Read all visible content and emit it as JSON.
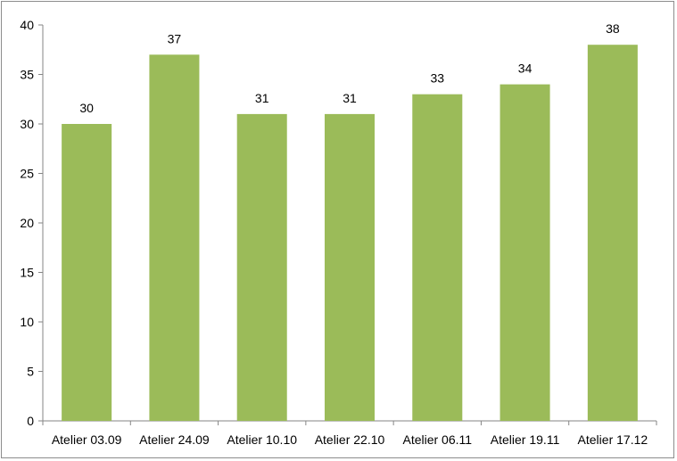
{
  "chart_data": {
    "type": "bar",
    "categories": [
      "Atelier 03.09",
      "Atelier 24.09",
      "Atelier 10.10",
      "Atelier 22.10",
      "Atelier 06.11",
      "Atelier 19.11",
      "Atelier 17.12"
    ],
    "values": [
      30,
      37,
      31,
      31,
      33,
      34,
      38
    ],
    "data_labels": [
      "30",
      "37",
      "31",
      "31",
      "33",
      "34",
      "38"
    ],
    "yticks": [
      "0",
      "5",
      "10",
      "15",
      "20",
      "25",
      "30",
      "35",
      "40"
    ],
    "ylim": [
      0,
      40
    ],
    "title": "",
    "xlabel": "",
    "ylabel": "",
    "grid": false,
    "legend": "none",
    "bar_color": "#9bbb59",
    "axis_color": "#868686"
  }
}
